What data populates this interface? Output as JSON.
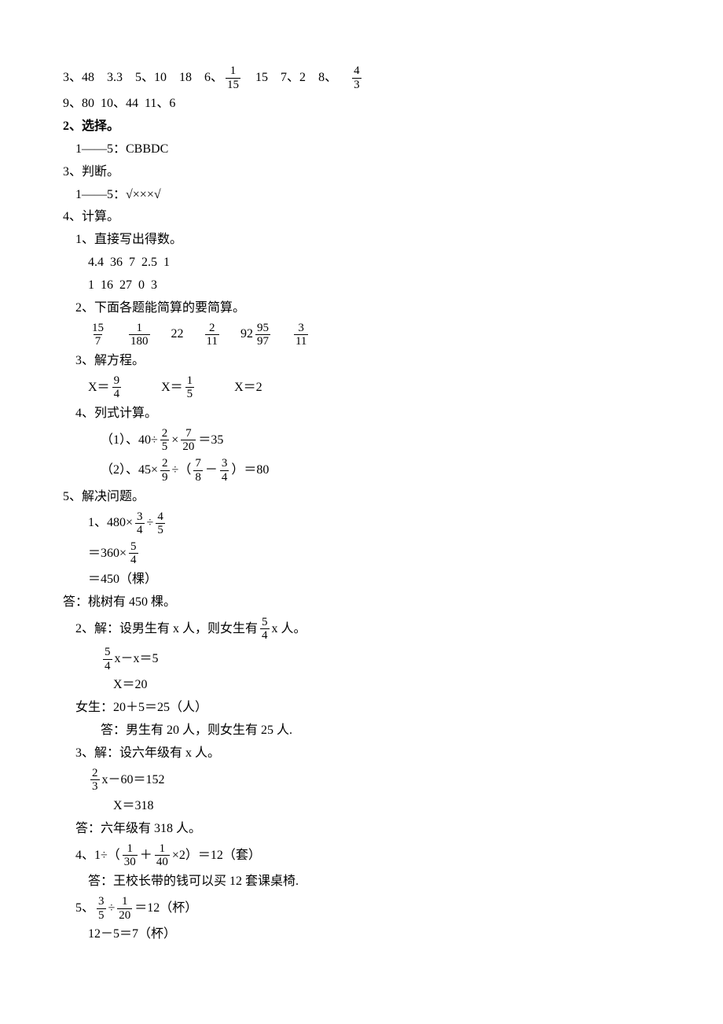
{
  "colors": {
    "text": "#000000",
    "bg": "#ffffff",
    "rule": "#000000"
  },
  "fonts": {
    "body_family": "SimSun",
    "body_size_pt": 12
  },
  "l1": {
    "p1a": "3、48",
    "p1b": "3.3",
    "p1c": "5、10",
    "p1d": "18",
    "p1e": "6、",
    "f1n": "1",
    "f1d": "15",
    "p1f": "15",
    "p1g": "7、2",
    "p1h": "8、",
    "f2n": "4",
    "f2d": "3"
  },
  "l2": "9、80  10、44  11、6",
  "h2": "2、选择。",
  "l3": "1——5：CBBDC",
  "h3": "3、判断。",
  "l4": "1——5：√×××√",
  "h4": "4、计算。",
  "l5": "1、直接写出得数。",
  "l6": "4.4  36  7  2.5  1",
  "l7": "1  16  27  0  3",
  "l8": "2、下面各题能简算的要简算。",
  "lfracs": {
    "a_n": "15",
    "a_d": "7",
    "b_n": "1",
    "b_d": "180",
    "mid1": "22",
    "c_n": "2",
    "c_d": "11",
    "mid2": "92",
    "d_n": "95",
    "d_d": "97",
    "e_n": "3",
    "e_d": "11"
  },
  "l9": "3、解方程。",
  "leq": {
    "x1a": "X＝",
    "x1n": "9",
    "x1d": "4",
    "x2a": "X＝",
    "x2n": "1",
    "x2d": "5",
    "x3": "X＝2"
  },
  "l10": "4、列式计算。",
  "calc1": {
    "pre": "（1）、40÷",
    "an": "2",
    "ad": "5",
    "mid": "×",
    "bn": "7",
    "bd": "20",
    "post": "＝35"
  },
  "calc2": {
    "pre": "（2）、45×",
    "an": "2",
    "ad": "9",
    "mid": "÷（",
    "bn": "7",
    "bd": "8",
    "minus": "－",
    "cn": "3",
    "cd": "4",
    "post": "）＝80"
  },
  "h5": "5、解决问题。",
  "p51": {
    "pre": "1、480×",
    "an": "3",
    "ad": "4",
    "mid": "÷",
    "bn": "4",
    "bd": "5"
  },
  "p51b": {
    "pre": "＝360×",
    "an": "5",
    "ad": "4"
  },
  "p51c": "＝450（棵）",
  "p51ans": "答：桃树有 450 棵。",
  "p52a": {
    "pre": "2、解：设男生有 x 人，则女生有",
    "an": "5",
    "ad": "4",
    "post": "x 人。"
  },
  "p52b": {
    "an": "5",
    "ad": "4",
    "post": "x－x＝5"
  },
  "p52c": "X＝20",
  "p52d": "女生：20＋5＝25（人）",
  "p52e": "答：男生有 20 人，则女生有 25 人.",
  "p53a": "3、解：设六年级有 x 人。",
  "p53b": {
    "an": "2",
    "ad": "3",
    "post": "x－60＝152"
  },
  "p53c": "X＝318",
  "p53d": "答：六年级有 318 人。",
  "p54": {
    "pre": "4、1÷（",
    "an": "1",
    "ad": "30",
    "plus": "＋",
    "bn": "1",
    "bd": "40",
    "post": "×2）＝12（套）"
  },
  "p54ans": "答：王校长带的钱可以买 12 套课桌椅.",
  "p55": {
    "pre": "5、",
    "an": "3",
    "ad": "5",
    "div": "÷",
    "bn": "1",
    "bd": "20",
    "post": "＝12（杯）"
  },
  "p55b": "12－5＝7（杯）"
}
